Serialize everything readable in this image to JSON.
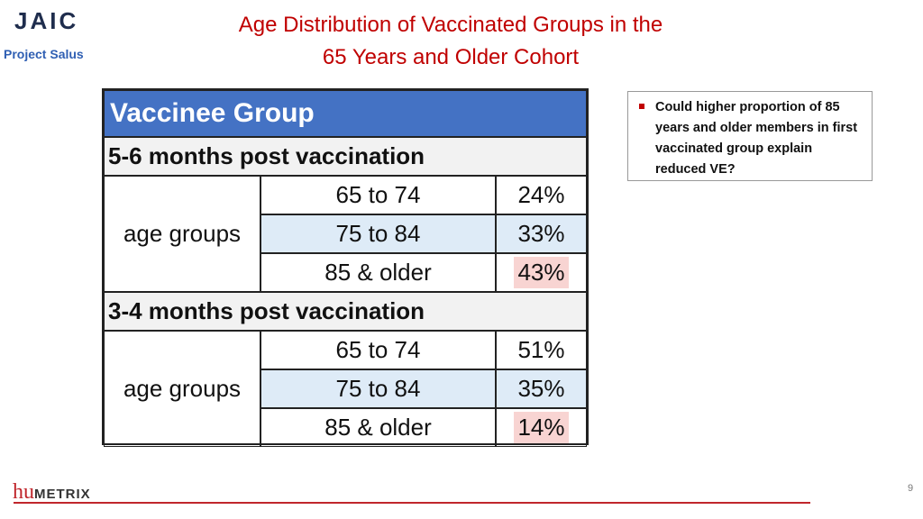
{
  "logo": {
    "text": "JAIC",
    "caption": "Project Salus"
  },
  "header": {
    "title_lines": [
      "Age Distribution of Vaccinated Groups in the",
      "65 Years and Older Cohort"
    ]
  },
  "table": {
    "header": "Vaccinee Group",
    "sections": [
      {
        "label": "5-6 months post vaccination",
        "row_label": "age groups",
        "rows": [
          [
            "65 to 74",
            "24%"
          ],
          [
            "75 to 84",
            "33%"
          ],
          [
            "85 & older",
            "43%"
          ]
        ]
      },
      {
        "label": "3-4 months post vaccination",
        "row_label": "age groups",
        "rows": [
          [
            "65 to 74",
            "51%"
          ],
          [
            "75 to 84",
            "35%"
          ],
          [
            "85 & older",
            "14%"
          ]
        ]
      }
    ]
  },
  "callout": {
    "text": "Could higher proportion of 85 years and older members in first vaccinated group explain reduced VE?"
  },
  "footer": {
    "brand_prefix": "hu",
    "brand_suffix": "METRIX",
    "page_number": 9
  }
}
